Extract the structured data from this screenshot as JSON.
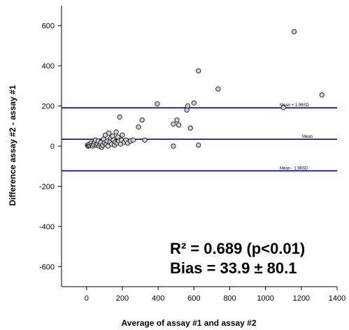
{
  "chart_data": {
    "type": "scatter",
    "title": "",
    "xlabel": "Average of assay #1 and assay #2",
    "ylabel": "Difference assay #2 - assay #1",
    "xlim": [
      -140,
      1400
    ],
    "ylim": [
      -700,
      700
    ],
    "x_ticks": [
      "0",
      "200",
      "400",
      "600",
      "800",
      "1000",
      "1200",
      "1400"
    ],
    "x_tick_values": [
      0,
      200,
      400,
      600,
      800,
      1000,
      1200,
      1400
    ],
    "y_ticks": [
      "-600",
      "-400",
      "-200",
      "0",
      "200",
      "400",
      "600"
    ],
    "y_tick_values": [
      -600,
      -400,
      -200,
      0,
      200,
      400,
      600
    ],
    "grid": false,
    "point_color": "#d0d0d0",
    "line_color": "#0000cc",
    "reference_lines": [
      {
        "label": "Mean + 1.96SD",
        "value": 191
      },
      {
        "label": "Mean",
        "value": 34
      },
      {
        "label": "Mean - 1.96SD",
        "value": -123
      }
    ],
    "annotations": [
      {
        "text": "R² = 0.689 (p<0.01)"
      },
      {
        "text": "Bias = 33.9 ± 80.1"
      }
    ],
    "points": [
      [
        5,
        5
      ],
      [
        8,
        0
      ],
      [
        12,
        3
      ],
      [
        15,
        10
      ],
      [
        20,
        2
      ],
      [
        25,
        15
      ],
      [
        30,
        5
      ],
      [
        35,
        0
      ],
      [
        40,
        8
      ],
      [
        45,
        20
      ],
      [
        50,
        30
      ],
      [
        55,
        5
      ],
      [
        60,
        12
      ],
      [
        65,
        25
      ],
      [
        70,
        0
      ],
      [
        75,
        10
      ],
      [
        80,
        18
      ],
      [
        85,
        -5
      ],
      [
        90,
        5
      ],
      [
        95,
        35
      ],
      [
        100,
        15
      ],
      [
        105,
        55
      ],
      [
        110,
        10
      ],
      [
        115,
        25
      ],
      [
        120,
        0
      ],
      [
        125,
        65
      ],
      [
        130,
        20
      ],
      [
        135,
        40
      ],
      [
        140,
        10
      ],
      [
        145,
        50
      ],
      [
        150,
        30
      ],
      [
        155,
        5
      ],
      [
        160,
        20
      ],
      [
        165,
        70
      ],
      [
        170,
        15
      ],
      [
        175,
        45
      ],
      [
        180,
        25
      ],
      [
        185,
        145
      ],
      [
        190,
        10
      ],
      [
        195,
        30
      ],
      [
        200,
        55
      ],
      [
        210,
        20
      ],
      [
        220,
        30
      ],
      [
        230,
        15
      ],
      [
        245,
        25
      ],
      [
        260,
        30
      ],
      [
        290,
        95
      ],
      [
        310,
        130
      ],
      [
        325,
        30
      ],
      [
        395,
        210
      ],
      [
        485,
        110
      ],
      [
        485,
        0
      ],
      [
        505,
        130
      ],
      [
        515,
        105
      ],
      [
        560,
        180
      ],
      [
        565,
        200
      ],
      [
        580,
        90
      ],
      [
        600,
        215
      ],
      [
        625,
        375
      ],
      [
        625,
        5
      ],
      [
        735,
        285
      ],
      [
        1100,
        192
      ],
      [
        1160,
        570
      ],
      [
        1315,
        255
      ]
    ]
  }
}
